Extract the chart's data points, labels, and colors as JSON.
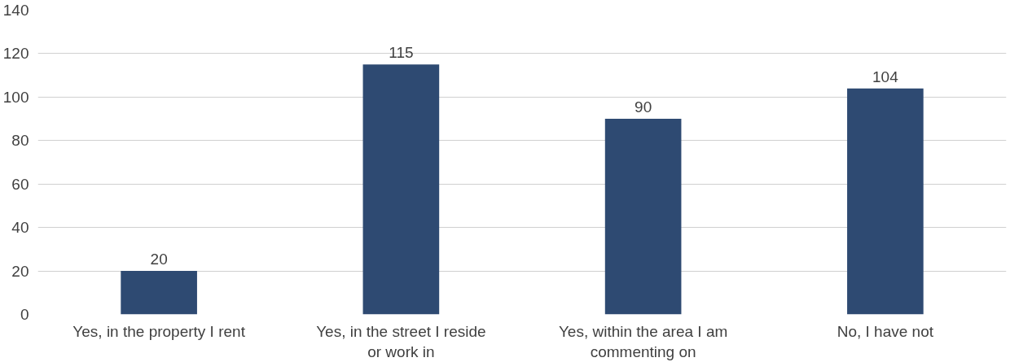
{
  "chart_data": {
    "type": "bar",
    "categories": [
      "Yes, in the property I rent",
      "Yes, in the street I reside or work in",
      "Yes, within the area I am commenting on",
      "No, I have not"
    ],
    "values": [
      20,
      115,
      90,
      104
    ],
    "color": "#2e4a72",
    "ylim": [
      0,
      140
    ],
    "yticks": [
      0,
      20,
      40,
      60,
      80,
      100,
      120,
      140
    ],
    "grid": "y",
    "data_labels": true
  }
}
